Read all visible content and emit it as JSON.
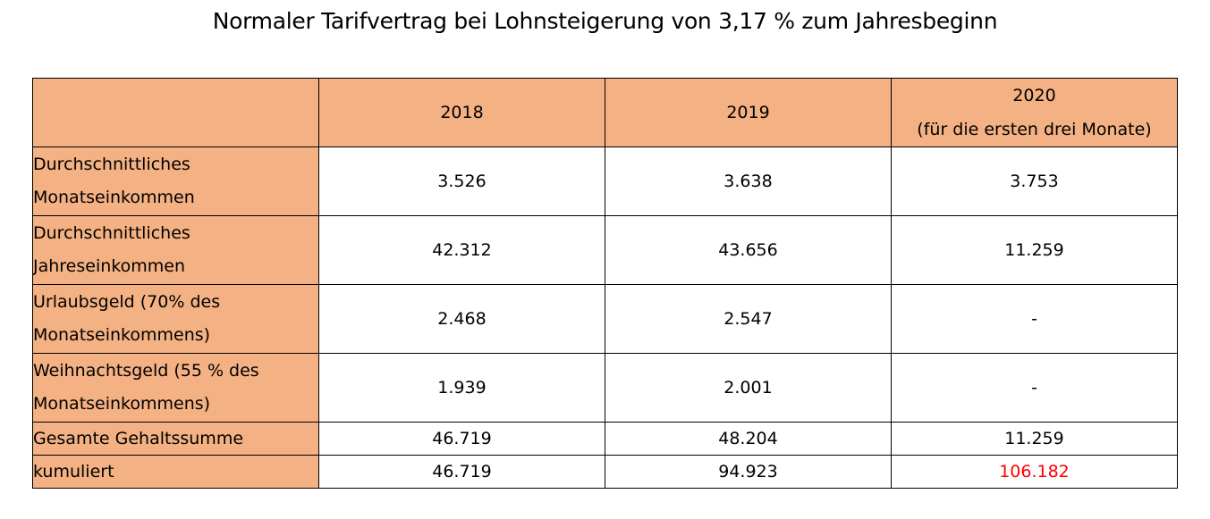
{
  "title": "Normaler Tarifvertrag bei Lohnsteigerung von 3,17 % zum Jahresbeginn",
  "table": {
    "headers": {
      "corner": "",
      "col_2018": "2018",
      "col_2019": "2019",
      "col_2020_line1": "2020",
      "col_2020_line2": "(für die ersten drei Monate)"
    },
    "rows": [
      {
        "label_line1": "Durchschnittliches",
        "label_line2": "Monatseinkommen",
        "v2018": "3.526",
        "v2019": "3.638",
        "v2020": "3.753"
      },
      {
        "label_line1": "Durchschnittliches",
        "label_line2": "Jahreseinkommen",
        "v2018": "42.312",
        "v2019": "43.656",
        "v2020": "11.259"
      },
      {
        "label_line1": "Urlaubsgeld (70% des",
        "label_line2": "Monatseinkommens)",
        "v2018": "2.468",
        "v2019": "2.547",
        "v2020": "-"
      },
      {
        "label_line1": "Weihnachtsgeld (55 % des",
        "label_line2": "Monatseinkommens)",
        "v2018": "1.939",
        "v2019": "2.001",
        "v2020": "-"
      },
      {
        "label": "Gesamte Gehaltssumme",
        "v2018": "46.719",
        "v2019": "48.204",
        "v2020": "11.259"
      },
      {
        "label": "kumuliert",
        "v2018": "46.719",
        "v2019": "94.923",
        "v2020": "106.182"
      }
    ]
  },
  "colors": {
    "header_fill": "#f4b183",
    "highlight_text": "#ff0000",
    "border": "#000000"
  }
}
